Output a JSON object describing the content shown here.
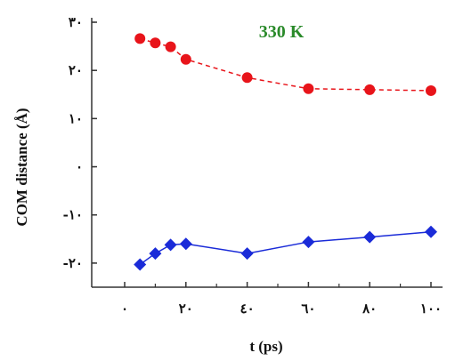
{
  "chart_data": {
    "type": "line",
    "xlabel": "t (ps)",
    "ylabel": "COM distance (Å)",
    "annotation": "330 K",
    "colors": {
      "annotation": "#2a8a2a",
      "series_top": "#e8141a",
      "series_bottom": "#1a2bd8",
      "axis": "#333333"
    },
    "xlim": [
      0,
      100
    ],
    "ylim": [
      -25,
      30
    ],
    "x_ticks": [
      {
        "value": 0,
        "label": "٠"
      },
      {
        "value": 20,
        "label": "٢٠"
      },
      {
        "value": 40,
        "label": "٤٠"
      },
      {
        "value": 60,
        "label": "٦٠"
      },
      {
        "value": 80,
        "label": "٨٠"
      },
      {
        "value": 100,
        "label": "١٠٠"
      }
    ],
    "y_ticks": [
      {
        "value": 30,
        "label": "٣٠"
      },
      {
        "value": 20,
        "label": "٢٠"
      },
      {
        "value": 10,
        "label": "١٠"
      },
      {
        "value": 0,
        "label": "٠"
      },
      {
        "value": -10,
        "label": "-١٠"
      },
      {
        "value": -20,
        "label": "-٢٠"
      }
    ],
    "series": [
      {
        "marker": "circle",
        "line": "dashed",
        "x": [
          5,
          10,
          15,
          20,
          40,
          60,
          80,
          100
        ],
        "y": [
          26.6,
          25.7,
          24.9,
          22.3,
          18.5,
          16.2,
          16.0,
          15.8
        ]
      },
      {
        "marker": "diamond",
        "line": "solid",
        "x": [
          5,
          10,
          15,
          20,
          40,
          60,
          80,
          100
        ],
        "y": [
          -20.3,
          -18.0,
          -16.2,
          -16.0,
          -18.0,
          -15.6,
          -14.6,
          -13.5
        ]
      }
    ]
  }
}
